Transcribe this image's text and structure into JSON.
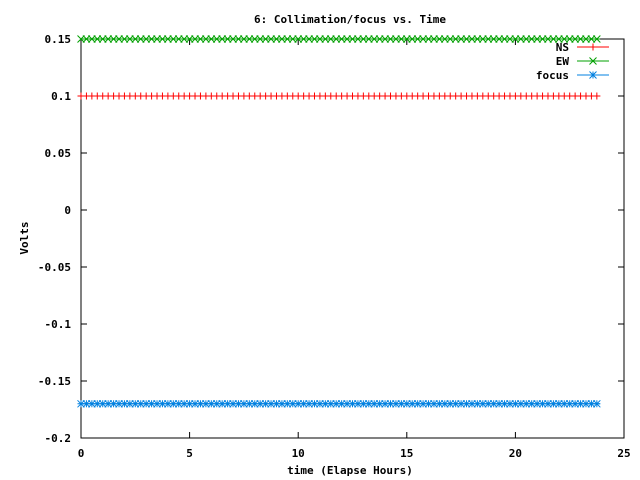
{
  "chart_data": {
    "type": "line",
    "title": "6: Collimation/focus vs. Time",
    "xlabel": "time (Elapse Hours)",
    "ylabel": "Volts",
    "xlim": [
      0,
      25
    ],
    "ylim": [
      -0.2,
      0.15
    ],
    "x_ticks": [
      0,
      5,
      10,
      15,
      20,
      25
    ],
    "x_tick_labels": [
      "0",
      "5",
      "10",
      "15",
      "20",
      "25"
    ],
    "y_ticks": [
      0.15,
      0.1,
      0.05,
      0,
      -0.05,
      -0.1,
      -0.15,
      -0.2
    ],
    "y_tick_labels": [
      "0.15",
      "0.1",
      "0.05",
      "0",
      "-0.05",
      "-0.1",
      "-0.15",
      "-0.2"
    ],
    "grid": false,
    "legend_position": "top-right",
    "x_range": [
      0,
      23.9
    ],
    "x_step": 0.25,
    "series": [
      {
        "name": "NS",
        "value": 0.1,
        "color": "#ff0000",
        "marker": "plus"
      },
      {
        "name": "EW",
        "value": 0.15,
        "color": "#00a000",
        "marker": "cross"
      },
      {
        "name": "focus",
        "value": -0.17,
        "color": "#0080e0",
        "marker": "star"
      }
    ]
  }
}
